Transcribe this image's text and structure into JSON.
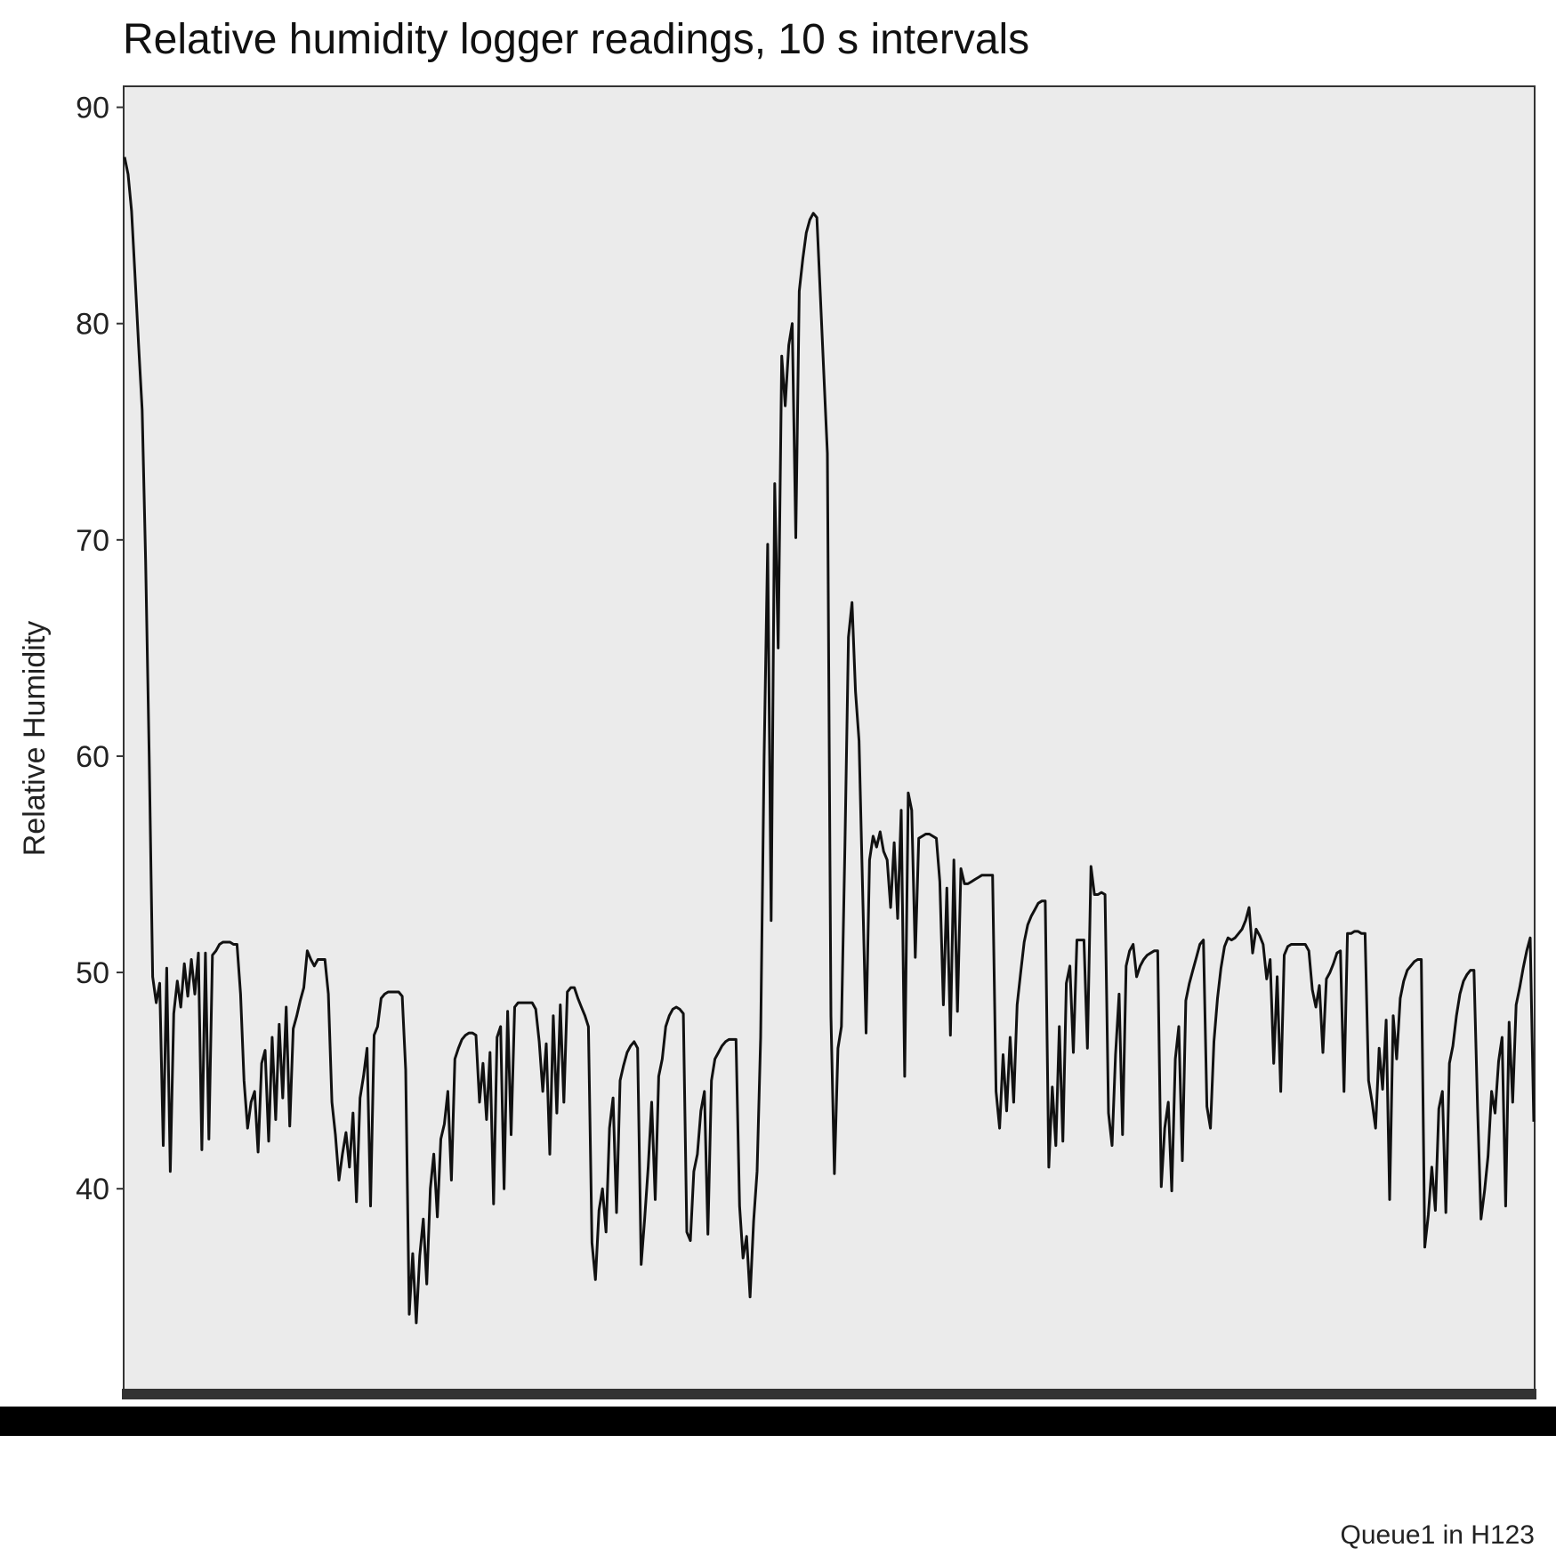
{
  "chart_data": {
    "type": "line",
    "title": "Relative humidity logger readings, 10 s intervals",
    "xlabel": "",
    "ylabel": "Relative Humidity",
    "caption": "Queue1 in H123",
    "ylim": [
      31,
      90.6
    ],
    "yticks": [
      40,
      50,
      60,
      70,
      80,
      90
    ],
    "x_tick_labels": [],
    "grid": false,
    "legend": "none",
    "colors": {
      "panel": "#ebebeb",
      "line": "#111111",
      "border": "#333333",
      "rug": "#333333",
      "bar": "#000000"
    },
    "series": [
      {
        "values": [
          87.7,
          86.9,
          85.2,
          82.1,
          79.0,
          76.0,
          69.0,
          60.0,
          49.8,
          48.6,
          49.5,
          42.0,
          50.2,
          40.8,
          48.1,
          49.6,
          48.4,
          50.4,
          48.9,
          50.6,
          49.0,
          50.9,
          41.8,
          50.9,
          42.3,
          50.8,
          51.0,
          51.3,
          51.4,
          51.4,
          51.4,
          51.3,
          51.3,
          49.0,
          45.0,
          42.8,
          44.0,
          44.5,
          41.7,
          45.8,
          46.4,
          42.2,
          47.0,
          43.2,
          47.6,
          44.2,
          48.4,
          42.9,
          47.4,
          48.0,
          48.7,
          49.3,
          51.0,
          50.6,
          50.3,
          50.6,
          50.6,
          50.6,
          49.0,
          44.0,
          42.5,
          40.4,
          41.6,
          42.6,
          41.0,
          43.5,
          39.4,
          44.2,
          45.2,
          46.5,
          39.2,
          47.1,
          47.5,
          48.8,
          49.0,
          49.1,
          49.1,
          49.1,
          49.1,
          48.9,
          45.5,
          34.2,
          37.0,
          33.8,
          36.9,
          38.6,
          35.6,
          40.0,
          41.6,
          38.7,
          42.3,
          43.0,
          44.5,
          40.4,
          46.0,
          46.5,
          46.9,
          47.1,
          47.2,
          47.2,
          47.1,
          44.0,
          45.8,
          43.2,
          46.3,
          39.3,
          47.0,
          47.5,
          40.0,
          48.2,
          42.5,
          48.4,
          48.6,
          48.6,
          48.6,
          48.6,
          48.6,
          48.3,
          46.8,
          44.5,
          46.7,
          41.6,
          48.0,
          43.5,
          48.5,
          44.0,
          49.1,
          49.3,
          49.3,
          48.8,
          48.4,
          48.0,
          47.5,
          37.5,
          35.8,
          39.0,
          40.0,
          38.0,
          42.8,
          44.2,
          38.9,
          45.0,
          45.7,
          46.3,
          46.6,
          46.8,
          46.5,
          36.5,
          38.6,
          41.0,
          44.0,
          39.5,
          45.2,
          46.0,
          47.5,
          48.0,
          48.3,
          48.4,
          48.3,
          48.1,
          38.0,
          37.6,
          40.8,
          41.6,
          43.6,
          44.5,
          37.9,
          45.0,
          46.0,
          46.3,
          46.6,
          46.8,
          46.9,
          46.9,
          46.9,
          39.2,
          36.8,
          37.8,
          35.0,
          38.5,
          40.8,
          47.0,
          60.0,
          69.8,
          52.4,
          72.6,
          65.0,
          78.5,
          76.2,
          79.0,
          80.0,
          70.1,
          81.5,
          83.0,
          84.2,
          84.8,
          85.1,
          84.9,
          81.3,
          77.6,
          74.0,
          48.0,
          40.7,
          46.5,
          47.5,
          56.0,
          65.5,
          67.1,
          63.0,
          60.7,
          54.0,
          47.2,
          55.2,
          56.3,
          55.8,
          56.5,
          55.6,
          55.2,
          53.0,
          56.0,
          52.5,
          57.5,
          45.2,
          58.3,
          57.5,
          50.7,
          56.2,
          56.3,
          56.4,
          56.4,
          56.3,
          56.2,
          54.2,
          48.5,
          53.9,
          47.1,
          55.2,
          48.2,
          54.8,
          54.1,
          54.1,
          54.2,
          54.3,
          54.4,
          54.5,
          54.5,
          54.5,
          54.5,
          44.5,
          42.8,
          46.2,
          43.6,
          47.0,
          44.0,
          48.5,
          50.0,
          51.4,
          52.2,
          52.6,
          52.9,
          53.2,
          53.3,
          53.3,
          41.0,
          44.7,
          42.0,
          47.5,
          42.2,
          49.5,
          50.3,
          46.3,
          51.5,
          51.5,
          51.5,
          46.5,
          54.9,
          53.6,
          53.6,
          53.7,
          53.6,
          43.5,
          42.0,
          46.2,
          49.0,
          42.5,
          50.3,
          51.0,
          51.3,
          49.8,
          50.3,
          50.6,
          50.8,
          50.9,
          51.0,
          51.0,
          40.1,
          42.8,
          44.0,
          39.9,
          46.0,
          47.5,
          41.3,
          48.7,
          49.5,
          50.1,
          50.7,
          51.3,
          51.5,
          43.8,
          42.8,
          46.8,
          48.8,
          50.2,
          51.2,
          51.6,
          51.5,
          51.6,
          51.8,
          52.0,
          52.4,
          53.0,
          50.9,
          52.0,
          51.7,
          51.3,
          49.7,
          50.6,
          45.8,
          49.8,
          44.5,
          50.8,
          51.2,
          51.3,
          51.3,
          51.3,
          51.3,
          51.3,
          51.0,
          49.2,
          48.4,
          49.4,
          46.3,
          49.7,
          50.0,
          50.4,
          50.9,
          51.0,
          44.5,
          51.8,
          51.8,
          51.9,
          51.9,
          51.8,
          51.8,
          45.0,
          44.0,
          42.8,
          46.5,
          44.6,
          47.8,
          39.5,
          48.0,
          46.0,
          48.8,
          49.6,
          50.1,
          50.3,
          50.5,
          50.6,
          50.6,
          37.3,
          38.8,
          41.0,
          39.0,
          43.7,
          44.5,
          38.9,
          45.8,
          46.6,
          48.0,
          49.0,
          49.6,
          49.9,
          50.1,
          50.1,
          43.8,
          38.6,
          39.9,
          41.5,
          44.5,
          43.5,
          45.9,
          47.0,
          39.2,
          47.7,
          44.0,
          48.5,
          49.3,
          50.2,
          51.0,
          51.6,
          43.1
        ]
      }
    ]
  }
}
